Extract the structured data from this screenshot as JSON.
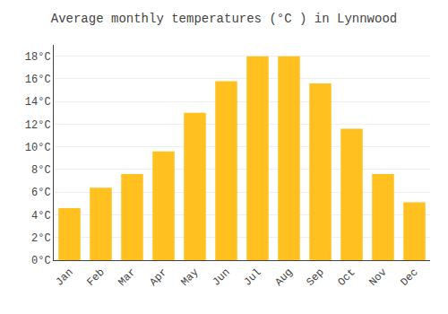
{
  "chart_data": {
    "type": "bar",
    "title": "Average monthly temperatures (°C ) in Lynnwood",
    "categories": [
      "Jan",
      "Feb",
      "Mar",
      "Apr",
      "May",
      "Jun",
      "Jul",
      "Aug",
      "Sep",
      "Oct",
      "Nov",
      "Dec"
    ],
    "values": [
      4.6,
      6.4,
      7.6,
      9.6,
      13.0,
      15.8,
      18.0,
      18.0,
      15.6,
      11.6,
      7.6,
      5.1
    ],
    "color": "#FFC020",
    "ylim": [
      0,
      19
    ],
    "yticks": [
      {
        "value": 0,
        "label": "0°C"
      },
      {
        "value": 2,
        "label": "2°C"
      },
      {
        "value": 4,
        "label": "4°C"
      },
      {
        "value": 6,
        "label": "6°C"
      },
      {
        "value": 8,
        "label": "8°C"
      },
      {
        "value": 10,
        "label": "10°C"
      },
      {
        "value": 12,
        "label": "12°C"
      },
      {
        "value": 14,
        "label": "14°C"
      },
      {
        "value": 16,
        "label": "16°C"
      },
      {
        "value": 18,
        "label": "18°C"
      }
    ],
    "grid": true
  }
}
